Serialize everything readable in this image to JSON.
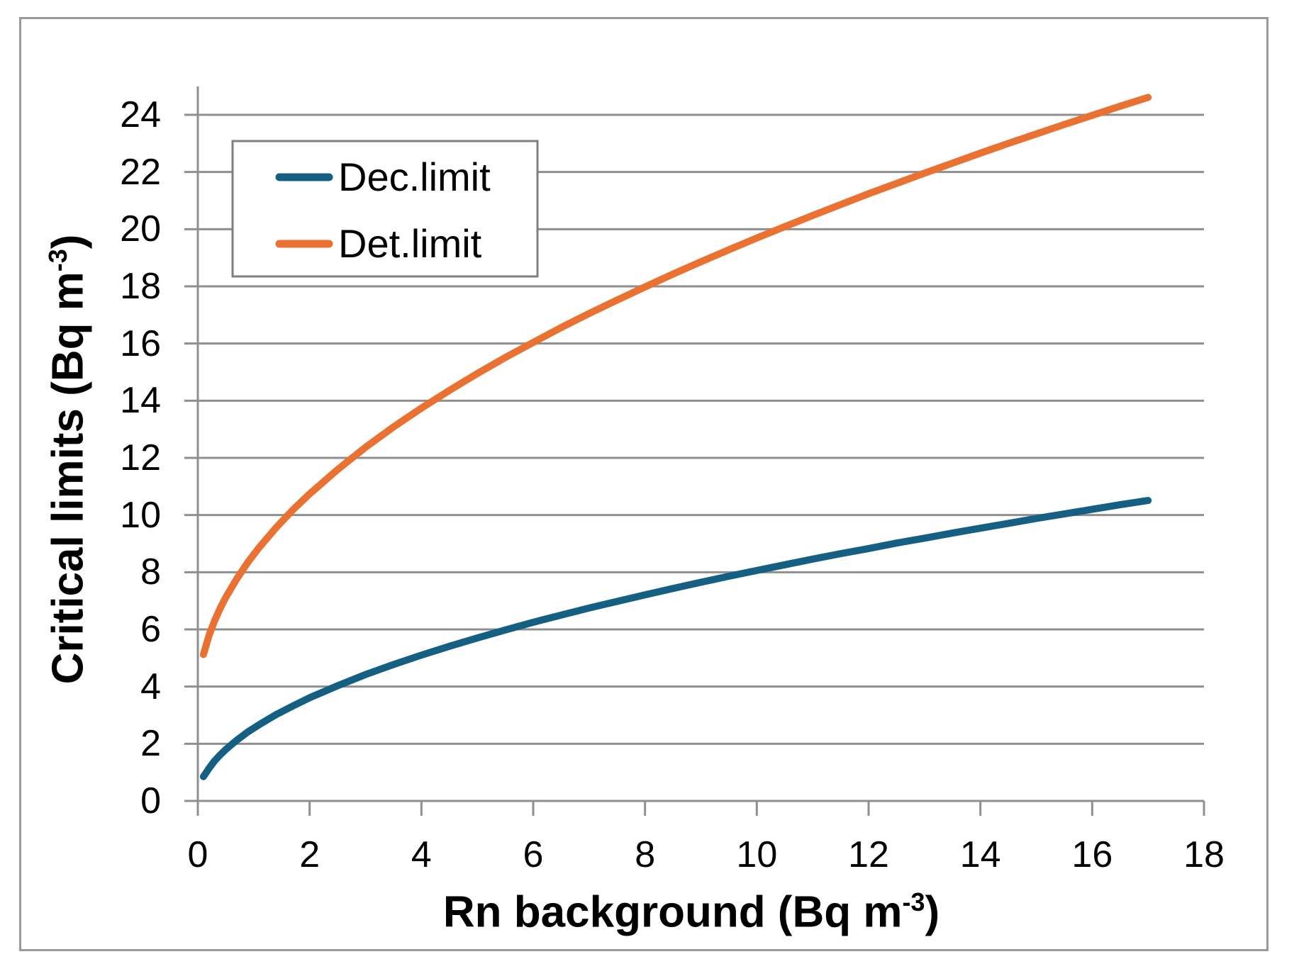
{
  "colors": {
    "frame_border": "#999999",
    "gridline": "#8F8F8F",
    "axis_line": "#8F8F8F",
    "legend_border": "#7F7F7F",
    "series_dec": "#156082",
    "series_det": "#E97132",
    "text": "#000000",
    "background": "#FFFFFF"
  },
  "axes": {
    "x_title_main": "Rn background (Bq m",
    "x_title_sup": "-3",
    "x_title_end": ")",
    "y_title_main": "Critical limits (Bq m",
    "y_title_sup": "-3",
    "y_title_end": ")"
  },
  "chart_data": {
    "type": "line",
    "title": "",
    "xlabel": "Rn background (Bq m⁻³)",
    "ylabel": "Critical limits (Bq m⁻³)",
    "xlim": [
      0,
      18
    ],
    "ylim": [
      0,
      24
    ],
    "x_ticks": [
      0,
      2,
      4,
      6,
      8,
      10,
      12,
      14,
      16,
      18
    ],
    "y_ticks": [
      0,
      2,
      4,
      6,
      8,
      10,
      12,
      14,
      16,
      18,
      20,
      22,
      24
    ],
    "grid": "horizontal-only",
    "legend_position": "top-left-inside-box",
    "x": [
      0.1,
      0.2,
      0.3,
      0.4,
      0.5,
      0.7,
      0.9,
      1.1,
      1.4,
      1.7,
      2,
      2.5,
      3,
      3.5,
      4,
      4.5,
      5,
      5.5,
      6,
      6.5,
      7,
      7.5,
      8,
      8.5,
      9,
      9.5,
      10,
      10.5,
      11,
      11.5,
      12,
      12.5,
      13,
      13.5,
      14,
      14.5,
      15,
      15.5,
      16,
      16.5,
      17
    ],
    "series": [
      {
        "name": "Dec.limit",
        "color": "#156082",
        "values": [
          0.85,
          1.14,
          1.4,
          1.61,
          1.8,
          2.13,
          2.42,
          2.67,
          3.02,
          3.32,
          3.61,
          4.03,
          4.42,
          4.77,
          5.1,
          5.41,
          5.7,
          5.98,
          6.25,
          6.5,
          6.75,
          6.98,
          7.21,
          7.43,
          7.65,
          7.86,
          8.06,
          8.26,
          8.46,
          8.65,
          8.83,
          9.02,
          9.19,
          9.37,
          9.54,
          9.71,
          9.88,
          10.04,
          10.2,
          10.36,
          10.51
        ]
      },
      {
        "name": "Det.limit",
        "color": "#E97132",
        "values": [
          5.12,
          5.79,
          6.3,
          6.74,
          7.12,
          7.78,
          8.36,
          8.87,
          9.56,
          10.18,
          10.74,
          11.59,
          12.37,
          13.08,
          13.74,
          14.36,
          14.95,
          15.51,
          16.04,
          16.56,
          17.05,
          17.52,
          17.98,
          18.43,
          18.86,
          19.28,
          19.69,
          20.09,
          20.48,
          20.86,
          21.24,
          21.6,
          21.96,
          22.31,
          22.66,
          23.0,
          23.33,
          23.66,
          23.98,
          24.3,
          24.61
        ]
      }
    ]
  }
}
